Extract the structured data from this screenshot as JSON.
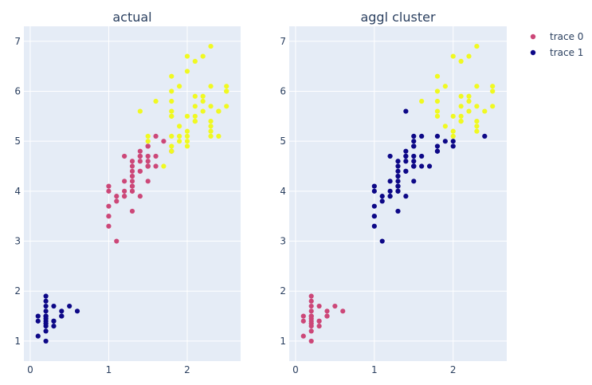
{
  "colors": {
    "plot_bg": "#e5ecf6",
    "grid": "#ffffff",
    "text": "#2a3f5f",
    "class_0": "#0d0887",
    "class_1": "#cc4778",
    "class_2": "#f0f921"
  },
  "legend": {
    "placement": "top-right",
    "items": [
      {
        "label": "trace 0",
        "color": "#cc4778"
      },
      {
        "label": "trace 1",
        "color": "#0d0887"
      }
    ]
  },
  "chart_data": [
    {
      "type": "scatter",
      "title": "actual",
      "xlabel": "",
      "ylabel": "",
      "xlim": [
        -0.08,
        2.68
      ],
      "ylim": [
        0.6,
        7.3
      ],
      "xticks": [
        "0",
        "1",
        "2"
      ],
      "yticks": [
        "1",
        "2",
        "3",
        "4",
        "5",
        "6",
        "7"
      ],
      "grid": true,
      "points": {
        "class_0": [
          [
            0.2,
            1.4
          ],
          [
            0.2,
            1.3
          ],
          [
            0.2,
            1.5
          ],
          [
            0.2,
            1.7
          ],
          [
            0.4,
            1.5
          ],
          [
            0.3,
            1.4
          ],
          [
            0.2,
            1.5
          ],
          [
            0.1,
            1.4
          ],
          [
            0.1,
            1.5
          ],
          [
            0.1,
            1.1
          ],
          [
            0.2,
            1.2
          ],
          [
            0.4,
            1.6
          ],
          [
            0.3,
            1.3
          ],
          [
            0.3,
            1.7
          ],
          [
            0.2,
            1.9
          ],
          [
            0.5,
            1.7
          ],
          [
            0.2,
            1.0
          ],
          [
            0.2,
            1.6
          ],
          [
            0.4,
            1.5
          ],
          [
            0.6,
            1.6
          ],
          [
            0.3,
            1.4
          ],
          [
            0.2,
            1.8
          ],
          [
            0.2,
            1.45
          ],
          [
            0.2,
            1.35
          ]
        ],
        "class_1": [
          [
            1.4,
            4.7
          ],
          [
            1.5,
            4.5
          ],
          [
            1.5,
            4.9
          ],
          [
            1.3,
            4.0
          ],
          [
            1.5,
            4.6
          ],
          [
            1.3,
            4.5
          ],
          [
            1.6,
            4.7
          ],
          [
            1.0,
            3.3
          ],
          [
            1.3,
            4.6
          ],
          [
            1.4,
            3.9
          ],
          [
            1.0,
            3.5
          ],
          [
            1.5,
            4.2
          ],
          [
            1.0,
            4.0
          ],
          [
            1.4,
            4.7
          ],
          [
            1.3,
            3.6
          ],
          [
            1.4,
            4.4
          ],
          [
            1.5,
            4.5
          ],
          [
            1.0,
            4.1
          ],
          [
            1.5,
            4.5
          ],
          [
            1.1,
            3.9
          ],
          [
            1.8,
            4.8
          ],
          [
            1.3,
            4.0
          ],
          [
            1.5,
            4.9
          ],
          [
            1.2,
            4.7
          ],
          [
            1.3,
            4.3
          ],
          [
            1.4,
            4.4
          ],
          [
            1.4,
            4.8
          ],
          [
            1.7,
            5.0
          ],
          [
            1.5,
            4.5
          ],
          [
            1.0,
            3.5
          ],
          [
            1.1,
            3.8
          ],
          [
            1.0,
            3.7
          ],
          [
            1.2,
            3.9
          ],
          [
            1.6,
            5.1
          ],
          [
            1.5,
            4.5
          ],
          [
            1.6,
            4.5
          ],
          [
            1.5,
            4.7
          ],
          [
            1.3,
            4.4
          ],
          [
            1.3,
            4.1
          ],
          [
            1.2,
            4.0
          ],
          [
            1.4,
            4.6
          ],
          [
            1.2,
            4.2
          ],
          [
            1.1,
            3.0
          ],
          [
            1.3,
            4.1
          ],
          [
            1.3,
            4.2
          ],
          [
            1.3,
            4.3
          ],
          [
            1.2,
            3.9
          ]
        ],
        "class_2": [
          [
            2.5,
            6.0
          ],
          [
            1.9,
            5.1
          ],
          [
            2.1,
            5.9
          ],
          [
            1.8,
            5.6
          ],
          [
            2.2,
            5.8
          ],
          [
            2.1,
            6.6
          ],
          [
            1.7,
            4.5
          ],
          [
            1.8,
            6.3
          ],
          [
            1.8,
            5.8
          ],
          [
            2.5,
            6.1
          ],
          [
            2.0,
            5.1
          ],
          [
            1.9,
            5.3
          ],
          [
            2.1,
            5.5
          ],
          [
            2.0,
            5.0
          ],
          [
            2.4,
            5.1
          ],
          [
            2.3,
            5.3
          ],
          [
            1.8,
            5.5
          ],
          [
            2.2,
            6.7
          ],
          [
            2.3,
            6.9
          ],
          [
            1.5,
            5.0
          ],
          [
            2.3,
            5.7
          ],
          [
            2.0,
            4.9
          ],
          [
            2.0,
            6.7
          ],
          [
            1.8,
            4.9
          ],
          [
            2.1,
            5.7
          ],
          [
            1.8,
            6.0
          ],
          [
            1.8,
            4.8
          ],
          [
            2.1,
            5.4
          ],
          [
            1.6,
            5.8
          ],
          [
            1.9,
            6.1
          ],
          [
            2.0,
            6.4
          ],
          [
            2.2,
            5.6
          ],
          [
            1.5,
            5.1
          ],
          [
            1.4,
            5.6
          ],
          [
            2.3,
            6.1
          ],
          [
            2.4,
            5.6
          ],
          [
            1.8,
            5.5
          ],
          [
            2.1,
            5.4
          ],
          [
            2.4,
            5.6
          ],
          [
            2.3,
            5.1
          ],
          [
            2.5,
            5.7
          ],
          [
            2.3,
            5.2
          ],
          [
            1.9,
            5.0
          ],
          [
            2.0,
            5.2
          ],
          [
            2.3,
            5.4
          ],
          [
            1.8,
            5.1
          ],
          [
            2.2,
            5.9
          ],
          [
            2.5,
            6.0
          ],
          [
            2.0,
            5.5
          ]
        ]
      }
    },
    {
      "type": "scatter",
      "title": "aggl cluster",
      "xlabel": "",
      "ylabel": "",
      "xlim": [
        -0.08,
        2.68
      ],
      "ylim": [
        0.6,
        7.3
      ],
      "xticks": [
        "0",
        "1",
        "2"
      ],
      "yticks": [
        "1",
        "2",
        "3",
        "4",
        "5",
        "6",
        "7"
      ],
      "grid": true,
      "points": {
        "class_1": [
          [
            0.2,
            1.4
          ],
          [
            0.2,
            1.3
          ],
          [
            0.2,
            1.5
          ],
          [
            0.2,
            1.7
          ],
          [
            0.4,
            1.5
          ],
          [
            0.3,
            1.4
          ],
          [
            0.2,
            1.5
          ],
          [
            0.1,
            1.4
          ],
          [
            0.1,
            1.5
          ],
          [
            0.1,
            1.1
          ],
          [
            0.2,
            1.2
          ],
          [
            0.4,
            1.6
          ],
          [
            0.3,
            1.3
          ],
          [
            0.3,
            1.7
          ],
          [
            0.2,
            1.9
          ],
          [
            0.5,
            1.7
          ],
          [
            0.2,
            1.0
          ],
          [
            0.2,
            1.6
          ],
          [
            0.4,
            1.5
          ],
          [
            0.6,
            1.6
          ],
          [
            0.3,
            1.4
          ],
          [
            0.2,
            1.8
          ],
          [
            0.2,
            1.45
          ],
          [
            0.2,
            1.35
          ]
        ],
        "class_0": [
          [
            1.4,
            4.7
          ],
          [
            1.5,
            4.5
          ],
          [
            1.5,
            4.9
          ],
          [
            1.3,
            4.0
          ],
          [
            1.5,
            4.6
          ],
          [
            1.3,
            4.5
          ],
          [
            1.6,
            4.7
          ],
          [
            1.0,
            3.3
          ],
          [
            1.3,
            4.6
          ],
          [
            1.4,
            3.9
          ],
          [
            1.0,
            3.5
          ],
          [
            1.5,
            4.2
          ],
          [
            1.0,
            4.0
          ],
          [
            1.4,
            4.7
          ],
          [
            1.3,
            3.6
          ],
          [
            1.4,
            4.4
          ],
          [
            1.5,
            4.5
          ],
          [
            1.0,
            4.1
          ],
          [
            1.5,
            4.5
          ],
          [
            1.1,
            3.9
          ],
          [
            1.8,
            4.8
          ],
          [
            1.3,
            4.0
          ],
          [
            1.5,
            4.9
          ],
          [
            1.2,
            4.7
          ],
          [
            1.3,
            4.3
          ],
          [
            1.4,
            4.4
          ],
          [
            1.4,
            4.8
          ],
          [
            1.5,
            4.5
          ],
          [
            1.0,
            3.5
          ],
          [
            1.1,
            3.8
          ],
          [
            1.0,
            3.7
          ],
          [
            1.2,
            3.9
          ],
          [
            1.6,
            5.1
          ],
          [
            1.5,
            4.5
          ],
          [
            1.6,
            4.5
          ],
          [
            1.5,
            4.7
          ],
          [
            1.3,
            4.4
          ],
          [
            1.3,
            4.1
          ],
          [
            1.2,
            4.0
          ],
          [
            1.4,
            4.6
          ],
          [
            1.2,
            4.2
          ],
          [
            1.1,
            3.0
          ],
          [
            1.3,
            4.1
          ],
          [
            1.3,
            4.2
          ],
          [
            1.3,
            4.3
          ],
          [
            1.2,
            3.9
          ],
          [
            1.4,
            5.6
          ],
          [
            1.5,
            5.1
          ],
          [
            1.8,
            4.9
          ],
          [
            1.5,
            5.0
          ],
          [
            1.8,
            5.1
          ],
          [
            1.7,
            4.5
          ],
          [
            2.0,
            5.0
          ],
          [
            2.0,
            4.9
          ],
          [
            2.4,
            5.1
          ],
          [
            1.9,
            5.0
          ],
          [
            1.8,
            4.8
          ]
        ],
        "class_2": [
          [
            2.5,
            6.0
          ],
          [
            2.1,
            5.9
          ],
          [
            1.8,
            5.6
          ],
          [
            2.2,
            5.8
          ],
          [
            2.1,
            6.6
          ],
          [
            1.8,
            6.3
          ],
          [
            1.8,
            5.8
          ],
          [
            2.5,
            6.1
          ],
          [
            2.0,
            5.1
          ],
          [
            1.9,
            5.3
          ],
          [
            2.1,
            5.5
          ],
          [
            2.3,
            5.3
          ],
          [
            1.8,
            5.5
          ],
          [
            2.2,
            6.7
          ],
          [
            2.3,
            6.9
          ],
          [
            2.3,
            5.7
          ],
          [
            2.0,
            6.7
          ],
          [
            2.1,
            5.7
          ],
          [
            1.8,
            6.0
          ],
          [
            2.1,
            5.4
          ],
          [
            1.6,
            5.8
          ],
          [
            1.9,
            6.1
          ],
          [
            2.2,
            5.6
          ],
          [
            2.3,
            6.1
          ],
          [
            2.4,
            5.6
          ],
          [
            2.1,
            5.4
          ],
          [
            2.5,
            5.7
          ],
          [
            2.3,
            5.2
          ],
          [
            2.0,
            5.2
          ],
          [
            2.3,
            5.4
          ],
          [
            2.2,
            5.9
          ],
          [
            2.0,
            5.5
          ]
        ]
      }
    }
  ]
}
